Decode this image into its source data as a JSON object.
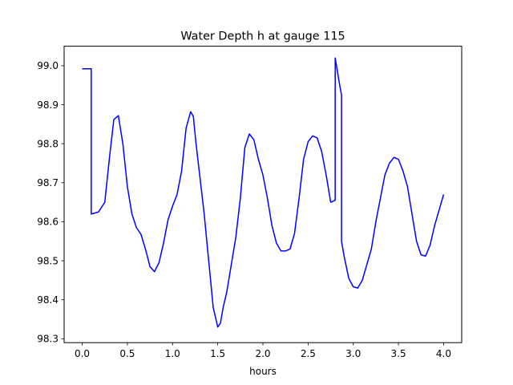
{
  "chart_data": {
    "type": "line",
    "title": "Water Depth h at gauge 115",
    "xlabel": "hours",
    "ylabel": "",
    "xlim": [
      -0.2,
      4.2
    ],
    "ylim": [
      98.29,
      99.05
    ],
    "xticks": [
      0.0,
      0.5,
      1.0,
      1.5,
      2.0,
      2.5,
      3.0,
      3.5,
      4.0
    ],
    "xtick_labels": [
      "0.0",
      "0.5",
      "1.0",
      "1.5",
      "2.0",
      "2.5",
      "3.0",
      "3.5",
      "4.0"
    ],
    "yticks": [
      98.3,
      98.4,
      98.5,
      98.6,
      98.7,
      98.8,
      98.9,
      99.0
    ],
    "ytick_labels": [
      "98.3",
      "98.4",
      "98.5",
      "98.6",
      "98.7",
      "98.8",
      "98.9",
      "99.0"
    ],
    "grid": false,
    "series": [
      {
        "color": "#0000ff",
        "x": [
          0.0,
          0.1,
          0.1,
          0.12,
          0.18,
          0.25,
          0.3,
          0.35,
          0.4,
          0.45,
          0.5,
          0.55,
          0.6,
          0.65,
          0.7,
          0.75,
          0.8,
          0.85,
          0.9,
          0.95,
          1.0,
          1.05,
          1.1,
          1.15,
          1.2,
          1.23,
          1.26,
          1.3,
          1.35,
          1.4,
          1.45,
          1.5,
          1.53,
          1.56,
          1.6,
          1.65,
          1.7,
          1.75,
          1.8,
          1.85,
          1.9,
          1.95,
          2.0,
          2.05,
          2.1,
          2.15,
          2.2,
          2.25,
          2.3,
          2.35,
          2.4,
          2.45,
          2.5,
          2.55,
          2.6,
          2.65,
          2.7,
          2.75,
          2.8,
          2.8,
          2.85,
          2.87,
          2.87,
          2.9,
          2.95,
          3.0,
          3.05,
          3.1,
          3.15,
          3.2,
          3.25,
          3.3,
          3.35,
          3.4,
          3.45,
          3.5,
          3.55,
          3.6,
          3.65,
          3.7,
          3.75,
          3.8,
          3.85,
          3.9,
          3.95,
          4.0
        ],
        "y": [
          98.992,
          98.992,
          98.62,
          98.621,
          98.625,
          98.65,
          98.76,
          98.862,
          98.872,
          98.8,
          98.69,
          98.62,
          98.585,
          98.568,
          98.53,
          98.485,
          98.472,
          98.495,
          98.545,
          98.605,
          98.64,
          98.67,
          98.73,
          98.84,
          98.882,
          98.87,
          98.8,
          98.72,
          98.62,
          98.5,
          98.38,
          98.33,
          98.34,
          98.38,
          98.42,
          98.49,
          98.56,
          98.66,
          98.79,
          98.825,
          98.81,
          98.76,
          98.72,
          98.66,
          98.59,
          98.545,
          98.525,
          98.525,
          98.53,
          98.57,
          98.66,
          98.76,
          98.805,
          98.82,
          98.815,
          98.78,
          98.72,
          98.65,
          98.655,
          99.02,
          98.95,
          98.925,
          98.55,
          98.51,
          98.455,
          98.433,
          98.43,
          98.45,
          98.49,
          98.53,
          98.6,
          98.66,
          98.72,
          98.75,
          98.765,
          98.76,
          98.73,
          98.69,
          98.62,
          98.55,
          98.515,
          98.512,
          98.54,
          98.59,
          98.63,
          98.67
        ]
      }
    ]
  }
}
